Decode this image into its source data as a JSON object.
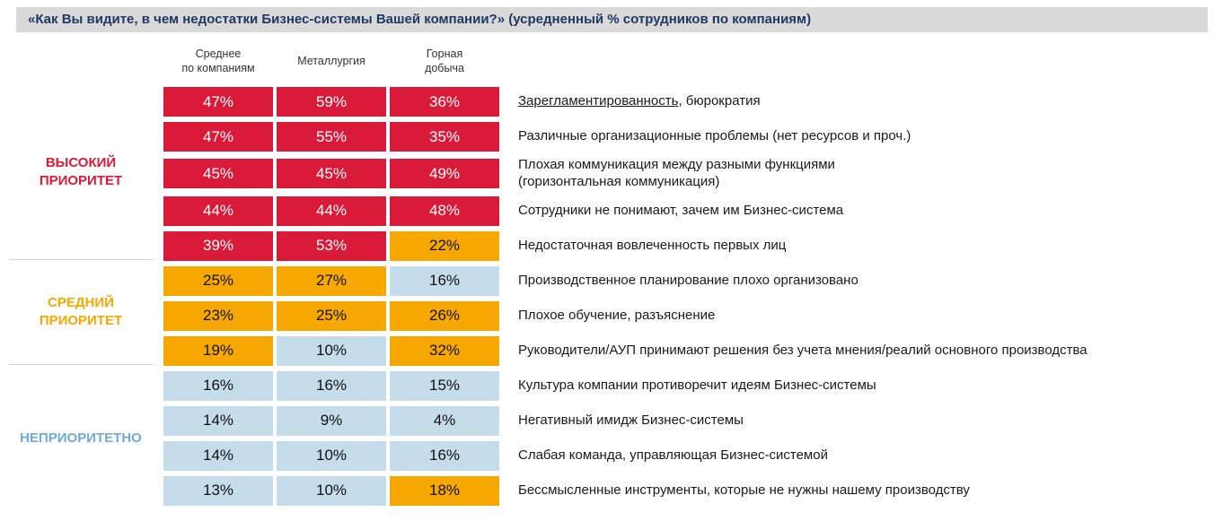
{
  "colors": {
    "high": "#D91A39",
    "mid": "#F7A800",
    "low": "#C5DCEA",
    "title_bar_bg": "#D9D9D9",
    "title_text": "#1F3864",
    "divider": "#CFCFCF"
  },
  "priority_groups": [
    {
      "label": "ВЫСОКИЙ\nПРИОРИТЕТ",
      "color": "#D91A39"
    },
    {
      "label": "СРЕДНИЙ\nПРИОРИТЕТ",
      "color": "#F7A800"
    },
    {
      "label": "НЕПРИОРИТЕТНО",
      "color": "#6FABD6"
    }
  ],
  "chart_data": {
    "type": "heatmap",
    "title": "«Как Вы видите, в чем недостатки Бизнес-системы Вашей компании?» (усредненный % сотрудников по компаниям)",
    "unit": "%",
    "columns": [
      "Среднее\nпо компаниям",
      "Металлургия",
      "Горная\nдобыча"
    ],
    "legend": {
      "high": "ВЫСОКИЙ ПРИОРИТЕТ",
      "mid": "СРЕДНИЙ ПРИОРИТЕТ",
      "low": "НЕПРИОРИТЕТНО"
    },
    "rows": [
      {
        "group": "ВЫСОКИЙ ПРИОРИТЕТ",
        "values": [
          47,
          59,
          36
        ],
        "levels": [
          "high",
          "high",
          "high"
        ],
        "label": "Зарегламентированность, бюрократия",
        "underlined": "Зарегламентированность"
      },
      {
        "group": "ВЫСОКИЙ ПРИОРИТЕТ",
        "values": [
          47,
          55,
          35
        ],
        "levels": [
          "high",
          "high",
          "high"
        ],
        "label": "Различные организационные проблемы (нет ресурсов и проч.)"
      },
      {
        "group": "ВЫСОКИЙ ПРИОРИТЕТ",
        "values": [
          45,
          45,
          49
        ],
        "levels": [
          "high",
          "high",
          "high"
        ],
        "label": "Плохая коммуникация между разными функциями\n(горизонтальная коммуникация)"
      },
      {
        "group": "ВЫСОКИЙ ПРИОРИТЕТ",
        "values": [
          44,
          44,
          48
        ],
        "levels": [
          "high",
          "high",
          "high"
        ],
        "label": "Сотрудники не понимают, зачем им Бизнес-система"
      },
      {
        "group": "ВЫСОКИЙ ПРИОРИТЕТ",
        "values": [
          39,
          53,
          22
        ],
        "levels": [
          "high",
          "high",
          "mid"
        ],
        "label": "Недостаточная вовлеченность первых лиц"
      },
      {
        "group": "СРЕДНИЙ ПРИОРИТЕТ",
        "values": [
          25,
          27,
          16
        ],
        "levels": [
          "mid",
          "mid",
          "low"
        ],
        "label": "Производственное планирование плохо организовано"
      },
      {
        "group": "СРЕДНИЙ ПРИОРИТЕТ",
        "values": [
          23,
          25,
          26
        ],
        "levels": [
          "mid",
          "mid",
          "mid"
        ],
        "label": "Плохое обучение, разъяснение"
      },
      {
        "group": "СРЕДНИЙ ПРИОРИТЕТ",
        "values": [
          19,
          10,
          32
        ],
        "levels": [
          "mid",
          "low",
          "mid"
        ],
        "label": "Руководители/АУП принимают решения без учета мнения/реалий основного производства"
      },
      {
        "group": "НЕПРИОРИТЕТНО",
        "values": [
          16,
          16,
          15
        ],
        "levels": [
          "low",
          "low",
          "low"
        ],
        "label": "Культура компании противоречит идеям Бизнес-системы"
      },
      {
        "group": "НЕПРИОРИТЕТНО",
        "values": [
          14,
          9,
          4
        ],
        "levels": [
          "low",
          "low",
          "low"
        ],
        "label": "Негативный имидж Бизнес-системы"
      },
      {
        "group": "НЕПРИОРИТЕТНО",
        "values": [
          14,
          10,
          16
        ],
        "levels": [
          "low",
          "low",
          "low"
        ],
        "label": "Слабая команда, управляющая Бизнес-системой"
      },
      {
        "group": "НЕПРИОРИТЕТНО",
        "values": [
          13,
          10,
          18
        ],
        "levels": [
          "low",
          "low",
          "mid"
        ],
        "label": "Бессмысленные инструменты, которые не нужны нашему производству"
      }
    ]
  }
}
